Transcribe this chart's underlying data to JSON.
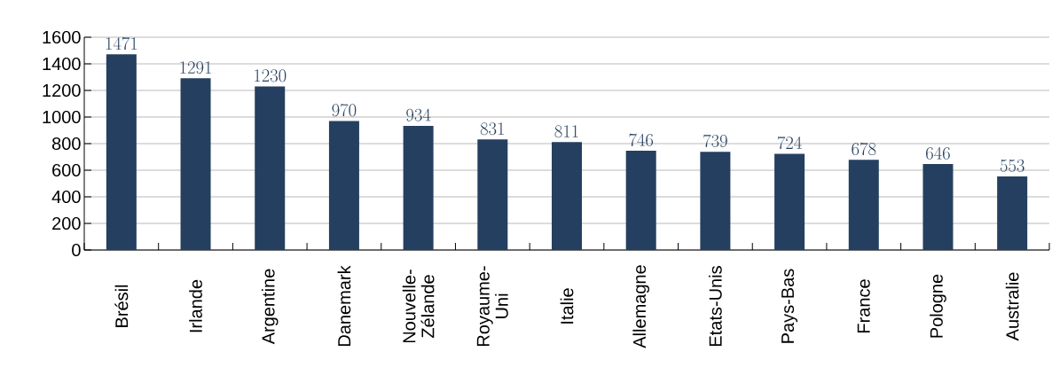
{
  "chart_data": {
    "type": "bar",
    "categories": [
      "Brésil",
      "Irlande",
      "Argentine",
      "Danemark",
      "Nouvelle-Zélande",
      "Royaume-Uni",
      "Italie",
      "Allemagne",
      "Etats-Unis",
      "Pays-Bas",
      "France",
      "Pologne",
      "Australie"
    ],
    "values": [
      1471,
      1291,
      1230,
      970,
      934,
      831,
      811,
      746,
      739,
      724,
      678,
      646,
      553
    ],
    "color": "#253f60",
    "ylim": [
      0,
      1600
    ],
    "yticks": [
      0,
      200,
      400,
      600,
      800,
      1000,
      1200,
      1400,
      1600
    ],
    "grid": "y",
    "data_labels": true
  }
}
